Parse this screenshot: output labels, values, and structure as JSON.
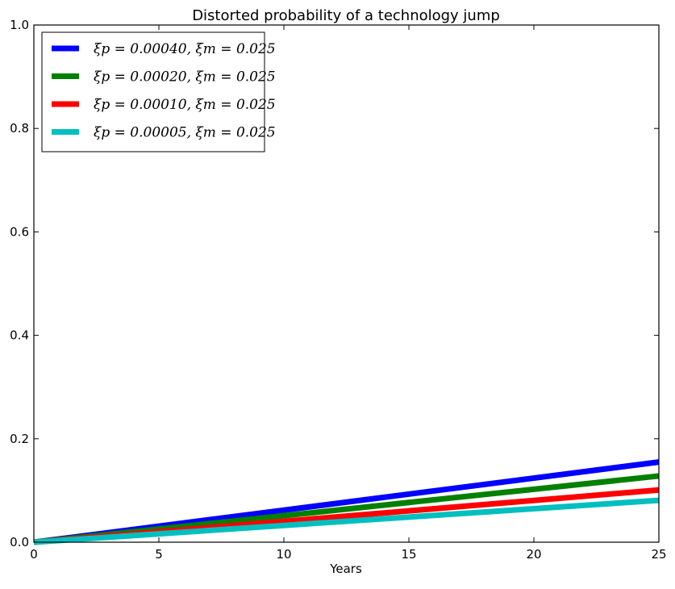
{
  "chart_data": {
    "type": "line",
    "title": "Distorted probability of a technology jump",
    "xlabel": "Years",
    "ylabel": "",
    "xlim": [
      0,
      25
    ],
    "ylim": [
      0,
      1.0
    ],
    "xticks": [
      0,
      5,
      10,
      15,
      20,
      25
    ],
    "yticks": [
      0.0,
      0.2,
      0.4,
      0.6,
      0.8,
      1.0
    ],
    "xtick_labels": [
      "0",
      "5",
      "10",
      "15",
      "20",
      "25"
    ],
    "ytick_labels": [
      "0.0",
      "0.2",
      "0.4",
      "0.6",
      "0.8",
      "1.0"
    ],
    "grid": false,
    "legend_position": "top-left",
    "series": [
      {
        "name": "ξp = 0.00040, ξm = 0.025",
        "color": "#0000ff",
        "x": [
          0,
          25
        ],
        "y": [
          0.0,
          0.155
        ]
      },
      {
        "name": "ξp = 0.00020, ξm = 0.025",
        "color": "#008000",
        "x": [
          0,
          25
        ],
        "y": [
          0.0,
          0.128
        ]
      },
      {
        "name": "ξp = 0.00010, ξm = 0.025",
        "color": "#ff0000",
        "x": [
          0,
          25
        ],
        "y": [
          0.0,
          0.101
        ]
      },
      {
        "name": "ξp = 0.00005, ξm = 0.025",
        "color": "#00bfbf",
        "x": [
          0,
          25
        ],
        "y": [
          0.0,
          0.081
        ]
      }
    ]
  }
}
